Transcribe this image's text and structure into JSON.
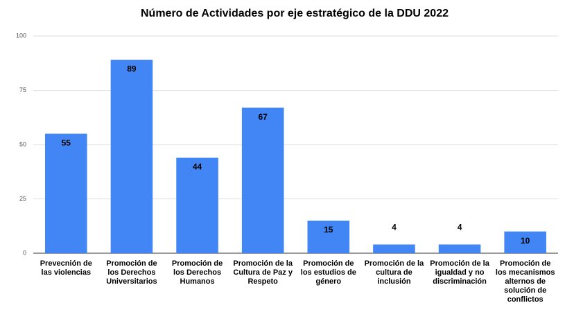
{
  "chart_data": {
    "type": "bar",
    "title": "Número de Actividades por eje estratégico de la DDU 2022",
    "categories": [
      "Prevecnión de las violencias",
      "Promoción de los Derechos Universitarios",
      "Promoción de los Derechos Humanos",
      "Promoción de la Cultura de Paz y Respeto",
      "Promoción de los estudios de género",
      "Promoción de la cultura de inclusión",
      "Promoción de la igualdad y no discriminación",
      "Promoción de los mecanismos alternos de solución de conflictos"
    ],
    "values": [
      55,
      89,
      44,
      67,
      15,
      4,
      4,
      10
    ],
    "color": "#4285f4",
    "ylim": [
      0,
      100
    ],
    "yticks": [
      0,
      25,
      50,
      75,
      100
    ],
    "grid": true
  }
}
